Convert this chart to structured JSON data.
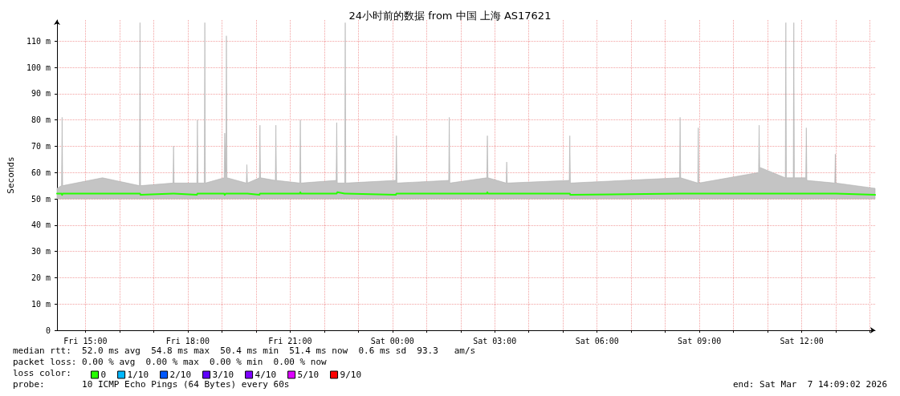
{
  "chart_data": {
    "type": "line",
    "title": "24小时前的数据 from 中国 上海 AS17621",
    "ylabel": "Seconds",
    "xlim": [
      "2026-03-06T14:10",
      "2026-03-07T14:09"
    ],
    "xticks": [
      {
        "value": "2026-03-06T15:00",
        "label": "Fri 15:00"
      },
      {
        "value": "2026-03-06T16:00",
        "label": null
      },
      {
        "value": "2026-03-06T17:00",
        "label": null
      },
      {
        "value": "2026-03-06T18:00",
        "label": "Fri 18:00"
      },
      {
        "value": "2026-03-06T19:00",
        "label": null
      },
      {
        "value": "2026-03-06T20:00",
        "label": null
      },
      {
        "value": "2026-03-06T21:00",
        "label": "Fri 21:00"
      },
      {
        "value": "2026-03-06T22:00",
        "label": null
      },
      {
        "value": "2026-03-06T23:00",
        "label": null
      },
      {
        "value": "2026-03-07T00:00",
        "label": "Sat 00:00"
      },
      {
        "value": "2026-03-07T01:00",
        "label": null
      },
      {
        "value": "2026-03-07T02:00",
        "label": null
      },
      {
        "value": "2026-03-07T03:00",
        "label": "Sat 03:00"
      },
      {
        "value": "2026-03-07T04:00",
        "label": null
      },
      {
        "value": "2026-03-07T05:00",
        "label": null
      },
      {
        "value": "2026-03-07T06:00",
        "label": "Sat 06:00"
      },
      {
        "value": "2026-03-07T07:00",
        "label": null
      },
      {
        "value": "2026-03-07T08:00",
        "label": null
      },
      {
        "value": "2026-03-07T09:00",
        "label": "Sat 09:00"
      },
      {
        "value": "2026-03-07T10:00",
        "label": null
      },
      {
        "value": "2026-03-07T11:00",
        "label": null
      },
      {
        "value": "2026-03-07T12:00",
        "label": "Sat 12:00"
      },
      {
        "value": "2026-03-07T13:00",
        "label": null
      },
      {
        "value": "2026-03-07T14:00",
        "label": null
      }
    ],
    "ylim": [
      0,
      118
    ],
    "yticks": [
      0,
      {
        "value": 10,
        "label": "10 m"
      },
      {
        "value": 20,
        "label": "20 m"
      },
      {
        "value": 30,
        "label": "30 m"
      },
      {
        "value": 40,
        "label": "40 m"
      },
      {
        "value": 50,
        "label": "50 m"
      },
      {
        "value": 60,
        "label": "60 m"
      },
      {
        "value": 70,
        "label": "70 m"
      },
      {
        "value": 80,
        "label": "80 m"
      },
      {
        "value": 90,
        "label": "90 m"
      },
      {
        "value": 100,
        "label": "100 m"
      },
      {
        "value": 110,
        "label": "110 m"
      }
    ],
    "grid": true,
    "legend": "bottom",
    "legend_title": "loss color:",
    "marker": "none",
    "line_style": "solid",
    "series": [
      {
        "name": "0",
        "color": "#26ff00",
        "x": [
          "2026-03-06T14:10",
          "2026-03-06T14:18",
          "2026-03-06T14:19",
          "2026-03-06T14:20",
          "2026-03-06T15:30",
          "2026-03-06T16:35",
          "2026-03-06T16:36",
          "2026-03-06T16:37",
          "2026-03-06T17:34",
          "2026-03-06T17:35",
          "2026-03-06T17:36",
          "2026-03-06T18:16",
          "2026-03-06T18:17",
          "2026-03-06T18:18",
          "2026-03-06T18:29",
          "2026-03-06T18:30",
          "2026-03-06T18:31",
          "2026-03-06T19:04",
          "2026-03-06T19:05",
          "2026-03-06T19:07",
          "2026-03-06T19:08",
          "2026-03-06T19:09",
          "2026-03-06T19:43",
          "2026-03-06T19:44",
          "2026-03-06T19:45",
          "2026-03-06T20:06",
          "2026-03-06T20:07",
          "2026-03-06T20:08",
          "2026-03-06T20:34",
          "2026-03-06T20:35",
          "2026-03-06T20:36",
          "2026-03-06T21:17",
          "2026-03-06T21:18",
          "2026-03-06T21:19",
          "2026-03-06T22:21",
          "2026-03-06T22:22",
          "2026-03-06T22:23",
          "2026-03-06T22:36",
          "2026-03-06T22:37",
          "2026-03-06T22:38",
          "2026-03-07T00:06",
          "2026-03-07T00:07",
          "2026-03-07T00:08",
          "2026-03-07T01:39",
          "2026-03-07T01:40",
          "2026-03-07T01:41",
          "2026-03-07T02:46",
          "2026-03-07T02:47",
          "2026-03-07T02:48",
          "2026-03-07T03:20",
          "2026-03-07T03:21",
          "2026-03-07T03:22",
          "2026-03-07T05:11",
          "2026-03-07T05:12",
          "2026-03-07T05:13",
          "2026-03-07T08:25",
          "2026-03-07T08:26",
          "2026-03-07T08:27",
          "2026-03-07T08:57",
          "2026-03-07T08:58",
          "2026-03-07T08:59",
          "2026-03-07T10:44",
          "2026-03-07T10:45",
          "2026-03-07T10:46",
          "2026-03-07T11:31",
          "2026-03-07T11:32",
          "2026-03-07T11:33",
          "2026-03-07T11:45",
          "2026-03-07T11:46",
          "2026-03-07T11:47",
          "2026-03-07T12:07",
          "2026-03-07T12:08",
          "2026-03-07T12:09",
          "2026-03-07T12:58",
          "2026-03-07T12:59",
          "2026-03-07T13:00",
          "2026-03-07T14:09"
        ],
        "values": [
          52,
          52,
          51.5,
          52,
          52,
          52,
          52,
          51.5,
          52,
          52,
          52,
          51.5,
          52,
          52,
          52,
          52,
          52,
          52,
          51.5,
          52,
          52,
          52,
          52,
          52,
          52,
          51.5,
          52,
          52,
          52,
          52,
          52,
          52,
          52.5,
          52,
          52,
          52,
          52.5,
          52,
          52,
          52,
          51.5,
          52,
          52,
          52,
          52,
          52,
          52,
          52.5,
          52,
          52,
          52,
          52,
          52,
          52,
          51.5,
          52,
          52,
          52,
          52,
          52,
          52,
          52,
          52,
          52,
          52,
          52,
          52,
          52,
          52,
          52,
          52,
          52,
          52,
          52,
          52,
          52,
          51.5
        ],
        "lower": [
          50,
          50,
          50,
          50,
          50,
          50,
          50,
          50,
          50,
          50,
          50,
          50,
          50,
          50,
          50,
          50,
          50,
          50,
          50,
          50,
          50,
          50,
          50,
          50,
          50,
          50,
          50,
          50,
          50,
          50,
          50,
          50,
          50,
          50,
          50,
          50,
          50,
          50,
          50,
          50,
          50,
          50,
          50,
          50,
          50,
          50,
          50,
          50,
          50,
          50,
          50,
          50,
          50,
          50,
          50,
          50,
          50,
          50,
          50,
          50,
          50,
          50,
          50,
          50,
          50,
          50,
          50,
          50,
          50,
          50,
          50,
          50,
          50,
          50,
          50,
          50,
          50
        ],
        "upper": [
          54,
          55,
          81,
          55,
          58,
          55,
          117,
          55,
          56,
          70,
          56,
          56,
          80,
          56,
          56,
          117,
          56,
          58,
          75,
          60,
          112,
          58,
          56,
          63,
          56,
          58,
          78,
          58,
          57,
          78,
          57,
          56,
          80,
          56,
          57,
          79,
          56,
          56,
          117,
          56,
          57,
          74,
          56,
          57,
          81,
          56,
          58,
          74,
          58,
          56,
          64,
          56,
          57,
          74,
          56,
          58,
          81,
          58,
          56,
          77,
          56,
          60,
          78,
          62,
          58,
          117,
          58,
          58,
          117,
          58,
          58,
          77,
          57,
          56,
          67,
          56,
          54
        ]
      },
      {
        "name": "1/10",
        "color": "#00b8ff"
      },
      {
        "name": "2/10",
        "color": "#0059ff"
      },
      {
        "name": "3/10",
        "color": "#5e00ff"
      },
      {
        "name": "4/10",
        "color": "#7e00ff"
      },
      {
        "name": "5/10",
        "color": "#dd00ff"
      },
      {
        "name": "9/10",
        "color": "#ff0000"
      }
    ],
    "annotations": [
      "median rtt:  52.0 ms avg  54.8 ms max  50.4 ms min  51.4 ms now  0.6 ms sd  93.3   am/s",
      "packet loss: 0.00 % avg  0.00 % max  0.00 % min  0.00 % now",
      "probe:       10 ICMP Echo Pings (64 Bytes) every 60s",
      "end: Sat Mar  7 14:09:02 2026"
    ]
  }
}
